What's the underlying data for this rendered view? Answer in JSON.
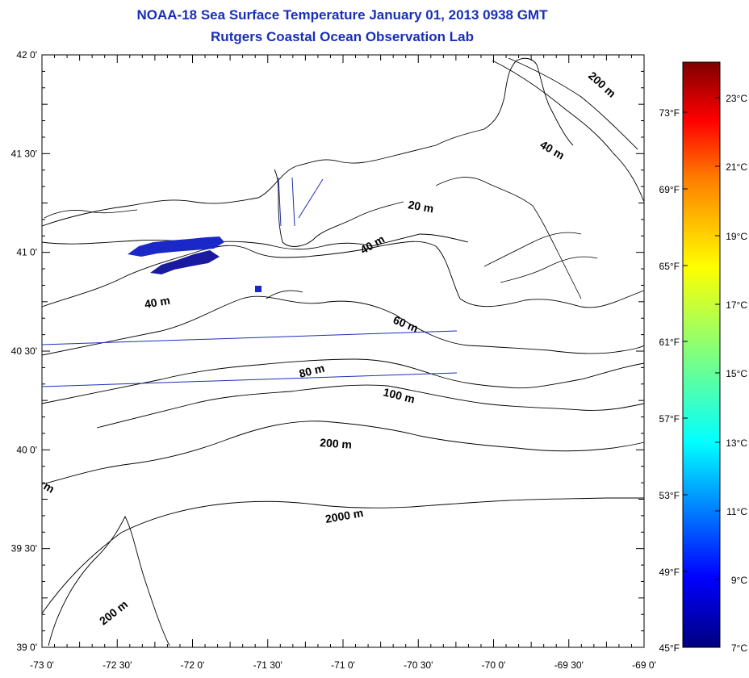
{
  "header": {
    "title": "NOAA-18 Sea Surface Temperature January 01, 2013 0938 GMT",
    "subtitle": "Rutgers Coastal Ocean Observation Lab"
  },
  "map": {
    "lon_ticks": [
      "-73 0'",
      "-72 30'",
      "-72 0'",
      "-71 30'",
      "-71 0'",
      "-70 30'",
      "-70 0'",
      "-69 30'",
      "-69 0'"
    ],
    "lat_ticks": [
      "42 0'",
      "41 30'",
      "41 0'",
      "40 30'",
      "40 0'",
      "39 30'",
      "39 0'"
    ],
    "contour_labels": [
      "200 m",
      "40 m",
      "20 m",
      "40 m",
      "40 m",
      "60 m",
      "80 m",
      "100 m",
      "200 m",
      "2000 m",
      "200 m",
      "m"
    ],
    "colors": {
      "land_line": "#000000",
      "track_line": "#1a2fb8",
      "sst_cold": "#1a1ab8"
    }
  },
  "colorbar": {
    "fahrenheit": [
      "73°F",
      "69°F",
      "65°F",
      "61°F",
      "57°F",
      "53°F",
      "49°F",
      "45°F"
    ],
    "celsius": [
      "23°C",
      "21°C",
      "19°C",
      "17°C",
      "15°C",
      "13°C",
      "11°C",
      "9°C",
      "7°C"
    ],
    "range_c": [
      7,
      25
    ],
    "gradient": [
      "#00007f",
      "#0000ff",
      "#007fff",
      "#00ffff",
      "#7fff7f",
      "#ffff00",
      "#ff7f00",
      "#ff0000",
      "#7f0000"
    ]
  }
}
